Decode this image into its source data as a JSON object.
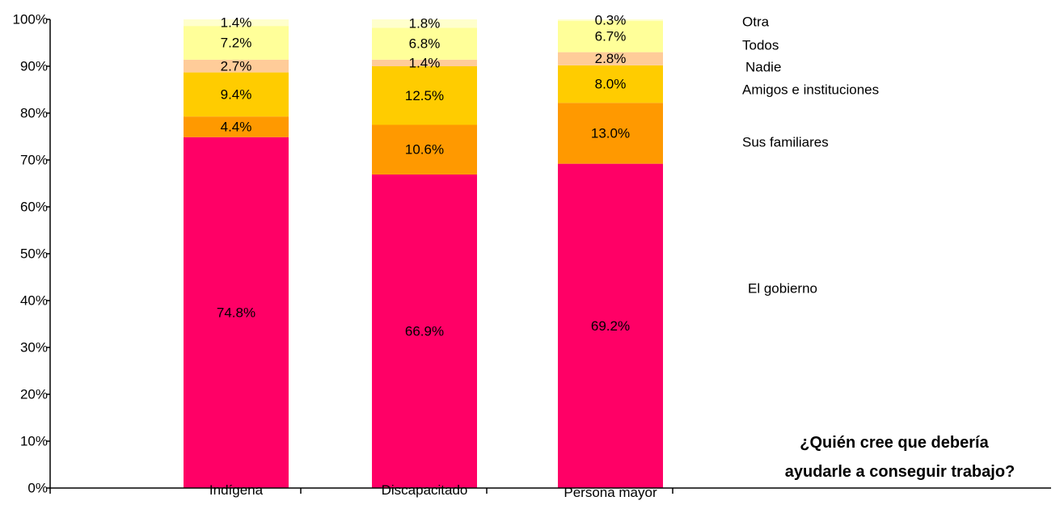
{
  "chart_data": {
    "type": "bar",
    "stacked": true,
    "percent_stacked": true,
    "categories": [
      "Indígena",
      "Discapacitado",
      "Persona mayor"
    ],
    "series": [
      {
        "name": "El gobierno",
        "values": [
          74.8,
          66.9,
          69.2
        ],
        "labels": [
          "74.8%",
          "66.9%",
          "69.2%"
        ],
        "color": "#FF0066"
      },
      {
        "name": "Sus familiares",
        "values": [
          4.4,
          10.6,
          13.0
        ],
        "labels": [
          "4.4%",
          "10.6%",
          "13.0%"
        ],
        "color": "#FF9900"
      },
      {
        "name": "Amigos e instituciones",
        "values": [
          9.4,
          12.5,
          8.0
        ],
        "labels": [
          "9.4%",
          "12.5%",
          "8.0%"
        ],
        "color": "#FFCC00"
      },
      {
        "name": "Nadie",
        "values": [
          2.7,
          1.4,
          2.8
        ],
        "labels": [
          "2.7%",
          "1.4%",
          "2.8%"
        ],
        "color": "#FFCC99"
      },
      {
        "name": "Todos",
        "values": [
          7.2,
          6.8,
          6.7
        ],
        "labels": [
          "7.2%",
          "6.8%",
          "6.7%"
        ],
        "color": "#FFFF99"
      },
      {
        "name": "Otra",
        "values": [
          1.4,
          1.8,
          0.3
        ],
        "labels": [
          "1.4%",
          "1.8%",
          "0.3%"
        ],
        "color": "#FFFFCC"
      }
    ],
    "yticks": [
      "0%",
      "10%",
      "20%",
      "30%",
      "40%",
      "50%",
      "60%",
      "70%",
      "80%",
      "90%",
      "100%"
    ],
    "ylim": [
      0,
      100
    ],
    "grid": false,
    "legend_position": "right",
    "annotation": {
      "line1": "¿Quién cree que debería",
      "line2": "ayudarle a conseguir trabajo?"
    }
  }
}
